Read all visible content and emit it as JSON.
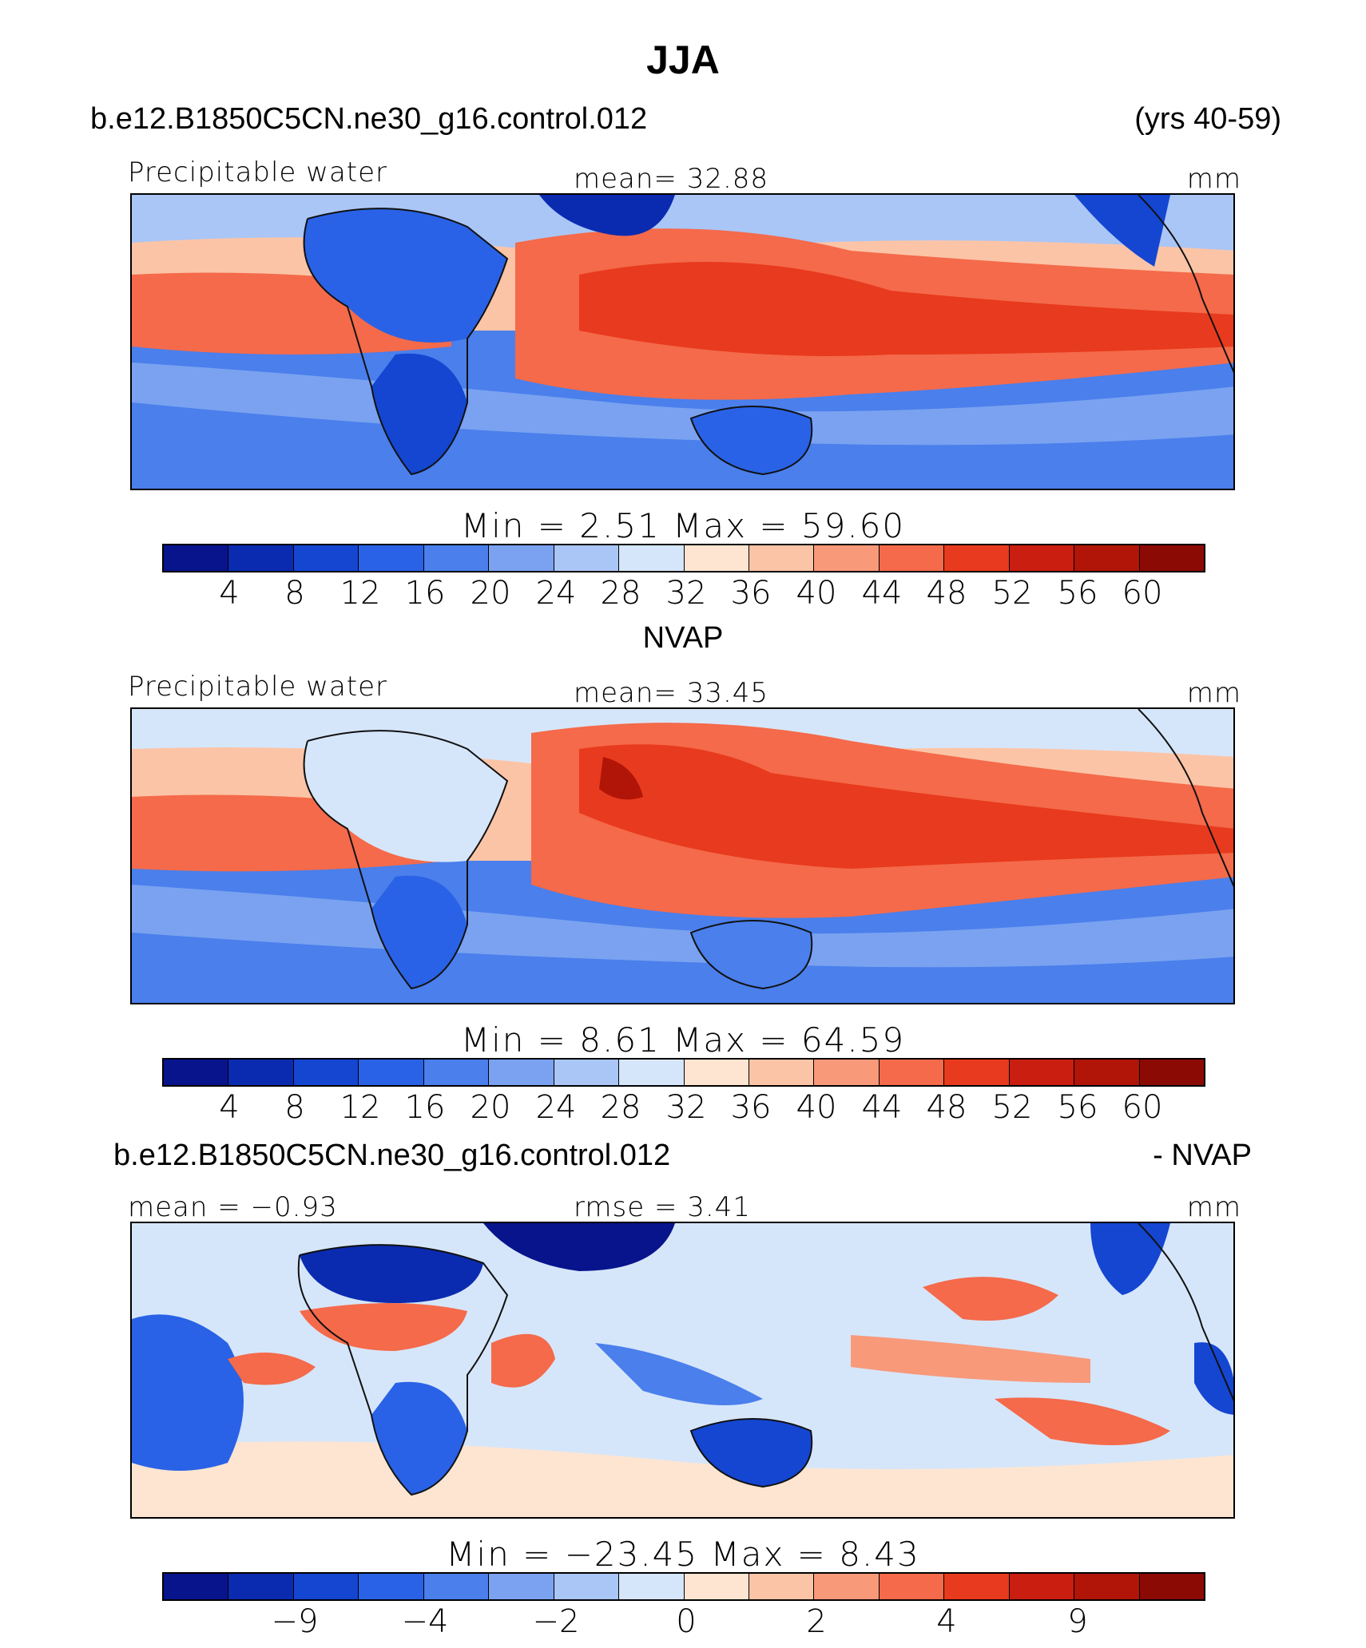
{
  "page": {
    "title": "JJA",
    "case_name": "b.e12.B1850C5CN.ne30_g16.control.012",
    "years": "(yrs 40-59)",
    "obs_title": "NVAP",
    "diff_case": "b.e12.B1850C5CN.ne30_g16.control.012",
    "diff_suffix": "- NVAP"
  },
  "colors": {
    "palette": [
      "#08148c",
      "#0a2bb0",
      "#1446d2",
      "#2962e6",
      "#4a7fec",
      "#7aa2f0",
      "#aac6f6",
      "#d6e6fa",
      "#fde5d2",
      "#fcc4a6",
      "#f8997a",
      "#f46a4a",
      "#e83a1e",
      "#c91e10",
      "#b01508",
      "#8b0a04"
    ],
    "ocean_warm": "#e05028",
    "land_outline": "#111111"
  },
  "panels": [
    {
      "label_left": "Precipitable water",
      "label_center": "mean=   32.88",
      "label_right": "mm",
      "minmax": "Min  =    2.51  Max  =    59.60",
      "ticks": [
        "4",
        "8",
        "12",
        "16",
        "20",
        "24",
        "28",
        "32",
        "36",
        "40",
        "44",
        "48",
        "52",
        "56",
        "60"
      ],
      "contour_levels": [
        4,
        8,
        12,
        16,
        20,
        24,
        28,
        32,
        36,
        40,
        44,
        48,
        52,
        56,
        60
      ],
      "min": 2.51,
      "max": 59.6,
      "mean": 32.88
    },
    {
      "label_left": "Precipitable water",
      "label_center": "mean=   33.45",
      "label_right": "mm",
      "minmax": "Min  =    8.61  Max  =    64.59",
      "ticks": [
        "4",
        "8",
        "12",
        "16",
        "20",
        "24",
        "28",
        "32",
        "36",
        "40",
        "44",
        "48",
        "52",
        "56",
        "60"
      ],
      "contour_levels": [
        4,
        8,
        12,
        16,
        20,
        24,
        28,
        32,
        36,
        40,
        44,
        48,
        52,
        56,
        60
      ],
      "min": 8.61,
      "max": 64.59,
      "mean": 33.45
    },
    {
      "label_left": "mean  =   −0.93",
      "label_center": "rmse  =     3.41",
      "label_right": "mm",
      "minmax": "Min  = −23.45  Max  =    8.43",
      "ticks": [
        "−9",
        "−4",
        "−2",
        "0",
        "2",
        "4",
        "9"
      ],
      "contour_levels": [
        -9,
        -4,
        -2,
        0,
        2,
        4,
        9
      ],
      "min": -23.45,
      "max": 8.43,
      "mean": -0.93,
      "rmse": 3.41
    }
  ]
}
